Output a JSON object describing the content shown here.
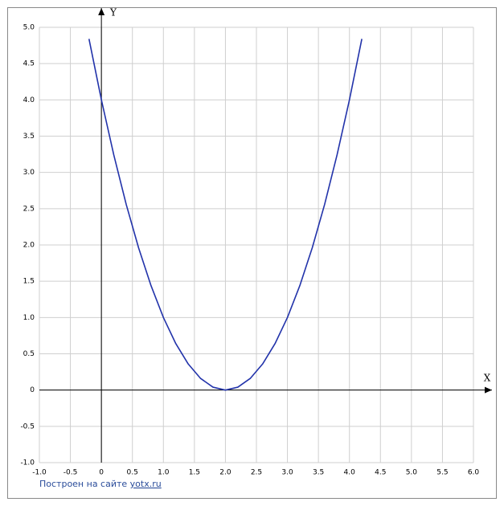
{
  "chart_data": {
    "type": "line",
    "x_label": "X",
    "y_label": "Y",
    "x": [
      -0.2,
      0,
      0.2,
      0.4,
      0.6,
      0.8,
      1.0,
      1.2,
      1.4,
      1.6,
      1.8,
      2.0,
      2.2,
      2.4,
      2.6,
      2.8,
      3.0,
      3.2,
      3.4,
      3.6,
      3.8,
      4.0,
      4.2
    ],
    "series": [
      {
        "color": "#2233aa",
        "values": [
          4.84,
          4,
          3.24,
          2.56,
          1.96,
          1.44,
          1,
          0.64,
          0.36,
          0.16,
          0.04,
          0,
          0.04,
          0.16,
          0.36,
          0.64,
          1,
          1.44,
          1.96,
          2.56,
          3.24,
          4,
          4.84
        ]
      }
    ],
    "xlim": [
      -1,
      6
    ],
    "ylim": [
      -1,
      5
    ],
    "xticks": [
      {
        "value": -1,
        "label": "-1.0"
      },
      -0.5,
      0,
      0.5,
      {
        "value": 1,
        "label": "1.0"
      },
      1.5,
      {
        "value": 2,
        "label": "2.0"
      },
      2.5,
      {
        "value": 3,
        "label": "3.0"
      },
      3.5,
      {
        "value": 4,
        "label": "4.0"
      },
      4.5,
      {
        "value": 5,
        "label": "5.0"
      },
      5.5,
      {
        "value": 6,
        "label": "6.0"
      }
    ],
    "yticks": [
      {
        "value": -1,
        "label": "-1.0"
      },
      -0.5,
      0,
      0.5,
      {
        "value": 1,
        "label": "1.0"
      },
      1.5,
      {
        "value": 2,
        "label": "2.0"
      },
      2.5,
      {
        "value": 3,
        "label": "3.0"
      },
      3.5,
      {
        "value": 4,
        "label": "4.0"
      },
      4.5,
      {
        "value": 5,
        "label": "5.0"
      }
    ],
    "grid": true
  },
  "footer": {
    "text": "Построен на сайте",
    "link": "yotx.ru"
  }
}
